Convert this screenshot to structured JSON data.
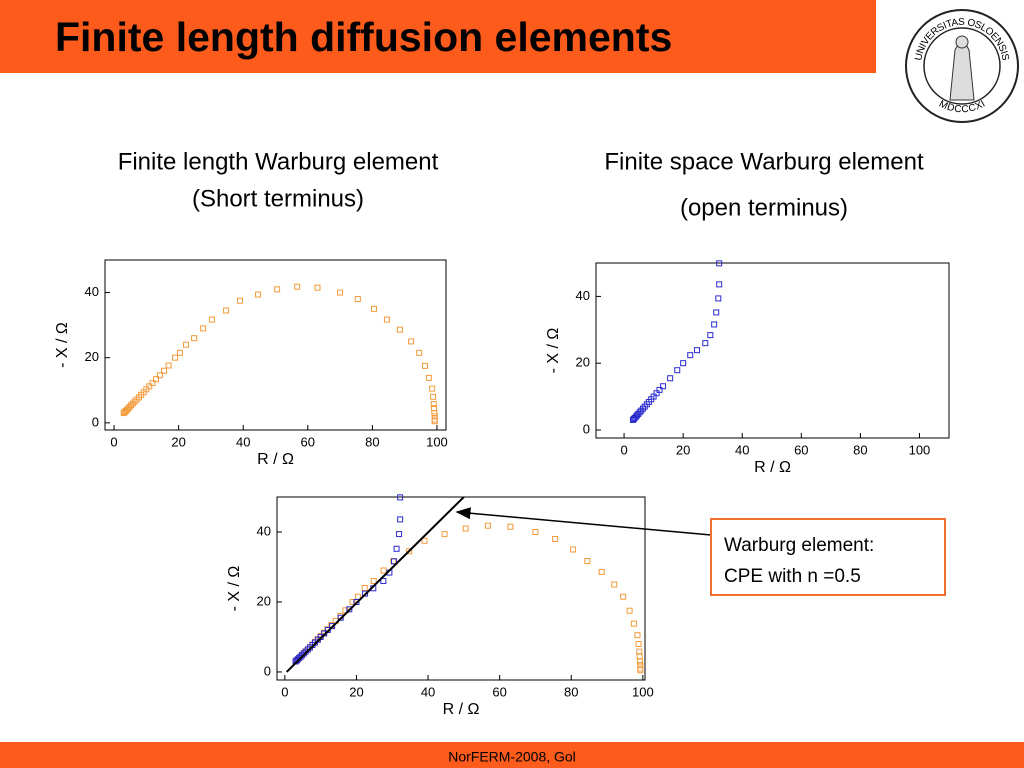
{
  "slide": {
    "title": "Finite length diffusion elements",
    "footer": "NorFERM-2008, Gol",
    "logo": {
      "top": "UNIVERSITAS OSLOENSIS",
      "bottom": "MDCCCXI"
    },
    "annotation": [
      "Warburg element:",
      "CPE with n =0.5"
    ]
  },
  "chart_data": [
    {
      "type": "scatter",
      "title": [
        "Finite length Warburg element",
        "(Short terminus)"
      ],
      "xlabel": "R / Ω",
      "ylabel": "- X / Ω",
      "xlim": [
        -2.8,
        102.8
      ],
      "ylim": [
        -2.2,
        50
      ],
      "xticks": [
        0,
        20,
        40,
        60,
        80,
        100
      ],
      "yticks": [
        0,
        20,
        40
      ],
      "series": [
        {
          "color": "#f29a3a",
          "x": [
            3,
            3.3,
            3.6,
            4,
            4.4,
            4.8,
            5.3,
            5.8,
            6.4,
            7,
            7.7,
            8.4,
            9.2,
            10,
            10.9,
            11.9,
            13,
            14.2,
            15.5,
            16.9,
            18.9,
            20.4,
            22.3,
            24.8,
            27.6,
            30.3,
            34.7,
            39,
            44.6,
            50.5,
            56.7,
            63,
            70,
            75.5,
            80.5,
            84.5,
            88.5,
            92,
            94.5,
            96.3,
            97.5,
            98.5,
            98.8,
            99,
            99.1,
            99.2,
            99.3,
            99.3,
            99.3
          ],
          "values": [
            3,
            3.3,
            3.6,
            4,
            4.4,
            4.9,
            5.4,
            5.9,
            6.5,
            7.1,
            7.8,
            8.6,
            9.4,
            10.3,
            11.2,
            12.2,
            13.4,
            14.6,
            16,
            17.6,
            20,
            21.5,
            24,
            26,
            29,
            31.7,
            34.5,
            37.5,
            39.4,
            41,
            41.8,
            41.5,
            40,
            38,
            35,
            31.7,
            28.6,
            25,
            21.5,
            17.5,
            13.8,
            10.5,
            8,
            5.8,
            4.5,
            3,
            2,
            1,
            0.5
          ]
        }
      ]
    },
    {
      "type": "scatter",
      "title": [
        "Finite space Warburg element",
        "(open terminus)"
      ],
      "xlabel": "R / Ω",
      "ylabel": "- X / Ω",
      "xlim": [
        -9.5,
        110
      ],
      "ylim": [
        -2.4,
        50
      ],
      "xticks": [
        0,
        20,
        40,
        60,
        80,
        100
      ],
      "yticks": [
        0,
        20,
        40
      ],
      "series": [
        {
          "color": "#2a2ad0",
          "x": [
            3,
            3.3,
            3.6,
            4,
            4.4,
            4.8,
            5.3,
            5.8,
            6.4,
            7,
            7.7,
            8.4,
            9.2,
            10,
            11,
            12,
            13.2,
            15.6,
            18,
            20,
            22.4,
            24.7,
            27.5,
            29.2,
            30.5,
            31.2,
            31.9,
            32.2,
            32.2
          ],
          "values": [
            3,
            3.3,
            3.6,
            4,
            4.4,
            4.8,
            5.3,
            5.8,
            6.4,
            7,
            7.7,
            8.4,
            9.2,
            10,
            11,
            12,
            13.1,
            15.5,
            17.9,
            20,
            22.4,
            23.9,
            26,
            28.4,
            31.6,
            35.2,
            39.4,
            43.6,
            49.9
          ]
        }
      ]
    },
    {
      "type": "scatter",
      "xlabel": "R / Ω",
      "ylabel": "- X / Ω",
      "xlim": [
        -2.2,
        100.6
      ],
      "ylim": [
        -2.3,
        50
      ],
      "xticks": [
        0,
        20,
        40,
        60,
        80,
        100
      ],
      "yticks": [
        0,
        20,
        40
      ],
      "series": [
        {
          "color": "#f29a3a",
          "x": [
            3,
            3.3,
            3.6,
            4,
            4.4,
            4.8,
            5.3,
            5.8,
            6.4,
            7,
            7.7,
            8.4,
            9.2,
            10,
            10.9,
            11.9,
            13,
            14.2,
            15.5,
            16.9,
            18.9,
            20.4,
            22.3,
            24.8,
            27.6,
            30.3,
            34.7,
            39,
            44.6,
            50.5,
            56.7,
            63,
            70,
            75.5,
            80.5,
            84.5,
            88.5,
            92,
            94.5,
            96.3,
            97.5,
            98.5,
            98.8,
            99,
            99.1,
            99.2,
            99.3,
            99.3,
            99.3
          ],
          "values": [
            3,
            3.3,
            3.6,
            4,
            4.4,
            4.9,
            5.4,
            5.9,
            6.5,
            7.1,
            7.8,
            8.6,
            9.4,
            10.3,
            11.2,
            12.2,
            13.4,
            14.6,
            16,
            17.6,
            20,
            21.5,
            24,
            26,
            29,
            31.7,
            34.5,
            37.5,
            39.4,
            41,
            41.8,
            41.5,
            40,
            38,
            35,
            31.7,
            28.6,
            25,
            21.5,
            17.5,
            13.8,
            10.5,
            8,
            5.8,
            4.5,
            3,
            2,
            1,
            0.5
          ]
        },
        {
          "color": "#2a2ad0",
          "x": [
            3,
            3.3,
            3.6,
            4,
            4.4,
            4.8,
            5.3,
            5.8,
            6.4,
            7,
            7.7,
            8.4,
            9.2,
            10,
            11,
            12,
            13.2,
            15.6,
            18,
            20,
            22.4,
            24.7,
            27.5,
            29.2,
            30.5,
            31.2,
            31.9,
            32.2,
            32.2
          ],
          "values": [
            3,
            3.3,
            3.6,
            4,
            4.4,
            4.8,
            5.3,
            5.8,
            6.4,
            7,
            7.7,
            8.4,
            9.2,
            10,
            11,
            12,
            13.1,
            15.5,
            17.9,
            20,
            22.4,
            23.9,
            26,
            28.4,
            31.6,
            35.2,
            39.4,
            43.6,
            49.9
          ]
        },
        {
          "type": "line",
          "color": "#000000",
          "x": [
            0.5,
            50
          ],
          "values": [
            0,
            50
          ]
        }
      ]
    }
  ]
}
